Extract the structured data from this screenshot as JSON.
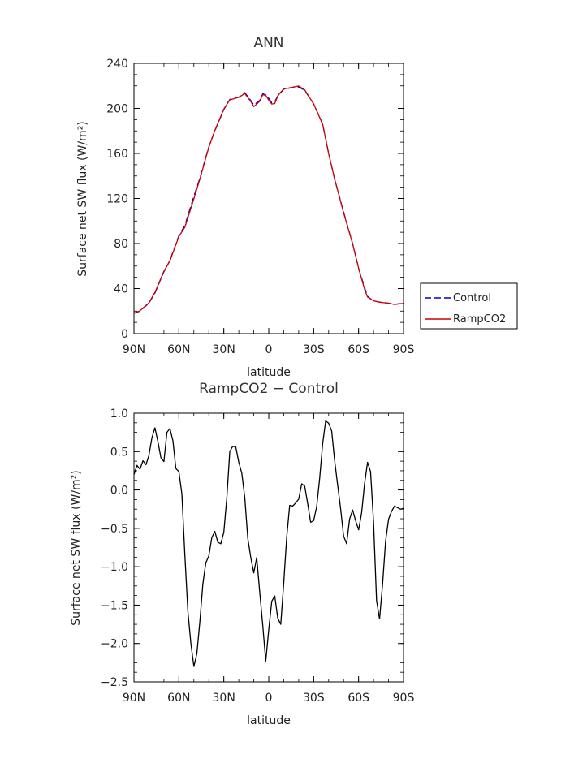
{
  "chart_data": [
    {
      "type": "line",
      "title": "ANN",
      "xlabel": "latitude",
      "ylabel": "Surface net SW flux (W/m²)",
      "xlim": [
        90,
        -90
      ],
      "ylim": [
        0,
        240
      ],
      "x_ticks": [
        90,
        60,
        30,
        0,
        -30,
        -60,
        -90
      ],
      "x_tick_labels": [
        "90N",
        "60N",
        "30N",
        "0",
        "30S",
        "60S",
        "90S"
      ],
      "y_ticks": [
        0,
        40,
        80,
        120,
        160,
        200,
        240
      ],
      "y_tick_labels": [
        "0",
        "40",
        "80",
        "120",
        "160",
        "200",
        "240"
      ],
      "legend": "right",
      "x": [
        90,
        86,
        80,
        76,
        70,
        66,
        60,
        56,
        50,
        46,
        40,
        36,
        30,
        26,
        20,
        16,
        12,
        10,
        6,
        4,
        2,
        0,
        -2,
        -4,
        -6,
        -8,
        -10,
        -14,
        -20,
        -24,
        -30,
        -36,
        -40,
        -44,
        -50,
        -56,
        -60,
        -64,
        -66,
        -70,
        -74,
        -80,
        -84,
        -90
      ],
      "series": [
        {
          "name": "Control",
          "color": "#0000cc",
          "dash": "8,4",
          "values": [
            18,
            20,
            27,
            36,
            55,
            65,
            87,
            96,
            122,
            138,
            166,
            180,
            199,
            208,
            210,
            214,
            207,
            203,
            207,
            213,
            212,
            209,
            205,
            206,
            211,
            214,
            217,
            218,
            219,
            216,
            204,
            186,
            160,
            137,
            108,
            80,
            58,
            41,
            33,
            29,
            28,
            27,
            26,
            27
          ]
        },
        {
          "name": "RampCO2",
          "color": "#cc0000",
          "dash": "",
          "values": [
            18.2,
            20.3,
            27.3,
            36.6,
            55.5,
            64.6,
            86.2,
            94.5,
            119.8,
            137.2,
            165.5,
            180.5,
            199.5,
            207.6,
            209.8,
            213.2,
            206.1,
            201.6,
            206.3,
            212.1,
            211.6,
            207.3,
            203.9,
            204.3,
            210.9,
            214.5,
            217.2,
            218.3,
            219.9,
            216.5,
            203.9,
            186.1,
            159.7,
            137.4,
            107.3,
            79.8,
            58.1,
            39.4,
            32.4,
            29.2,
            27.8,
            27.0,
            25.9,
            26.8
          ]
        }
      ]
    },
    {
      "type": "line",
      "title": "RampCO2 − Control",
      "xlabel": "latitude",
      "ylabel": "Surface net SW flux (W/m²)",
      "xlim": [
        90,
        -90
      ],
      "ylim": [
        -2.5,
        1.0
      ],
      "x_ticks": [
        90,
        60,
        30,
        0,
        -30,
        -60,
        -90
      ],
      "x_tick_labels": [
        "90N",
        "60N",
        "30N",
        "0",
        "30S",
        "60S",
        "90S"
      ],
      "y_ticks": [
        1.0,
        0.5,
        0.0,
        -0.5,
        -1.0,
        -1.5,
        -2.0,
        -2.5
      ],
      "y_tick_labels": [
        "1.0",
        "0.5",
        "0.0",
        "−0.5",
        "−1.0",
        "−1.5",
        "−2.0",
        "−2.5"
      ],
      "series": [
        {
          "color": "#000000",
          "x": [
            90,
            88,
            86,
            84,
            82,
            80,
            78,
            76,
            74,
            72,
            70,
            68,
            66,
            64,
            62,
            60,
            58,
            56,
            54,
            52,
            50,
            48,
            46,
            44,
            42,
            40,
            38,
            36,
            34,
            32,
            30,
            28,
            26,
            24,
            22,
            20,
            18,
            16,
            14,
            12,
            10,
            8,
            6,
            4,
            2,
            0,
            -2,
            -4,
            -6,
            -8,
            -10,
            -12,
            -14,
            -16,
            -18,
            -20,
            -22,
            -24,
            -26,
            -28,
            -30,
            -32,
            -34,
            -36,
            -38,
            -40,
            -42,
            -44,
            -46,
            -48,
            -50,
            -52,
            -54,
            -56,
            -58,
            -60,
            -62,
            -64,
            -66,
            -68,
            -70,
            -72,
            -74,
            -76,
            -78,
            -80,
            -82,
            -84,
            -86,
            -88,
            -90
          ],
          "values": [
            0.2,
            0.32,
            0.27,
            0.38,
            0.33,
            0.45,
            0.68,
            0.81,
            0.63,
            0.42,
            0.37,
            0.75,
            0.8,
            0.64,
            0.28,
            0.24,
            -0.05,
            -0.85,
            -1.58,
            -2.0,
            -2.3,
            -2.13,
            -1.71,
            -1.23,
            -0.95,
            -0.86,
            -0.62,
            -0.54,
            -0.68,
            -0.7,
            -0.55,
            -0.1,
            0.5,
            0.57,
            0.56,
            0.36,
            0.22,
            -0.1,
            -0.63,
            -0.88,
            -1.08,
            -0.88,
            -1.33,
            -1.76,
            -2.23,
            -1.82,
            -1.45,
            -1.38,
            -1.67,
            -1.75,
            -1.22,
            -0.62,
            -0.2,
            -0.21,
            -0.17,
            -0.12,
            0.08,
            0.05,
            -0.18,
            -0.42,
            -0.4,
            -0.22,
            0.15,
            0.6,
            0.9,
            0.87,
            0.77,
            0.38,
            0.07,
            -0.24,
            -0.6,
            -0.7,
            -0.38,
            -0.26,
            -0.4,
            -0.52,
            -0.3,
            0.08,
            0.36,
            0.24,
            -0.42,
            -1.44,
            -1.68,
            -1.23,
            -0.67,
            -0.38,
            -0.28,
            -0.21,
            -0.23,
            -0.25,
            -0.24
          ]
        }
      ]
    }
  ]
}
